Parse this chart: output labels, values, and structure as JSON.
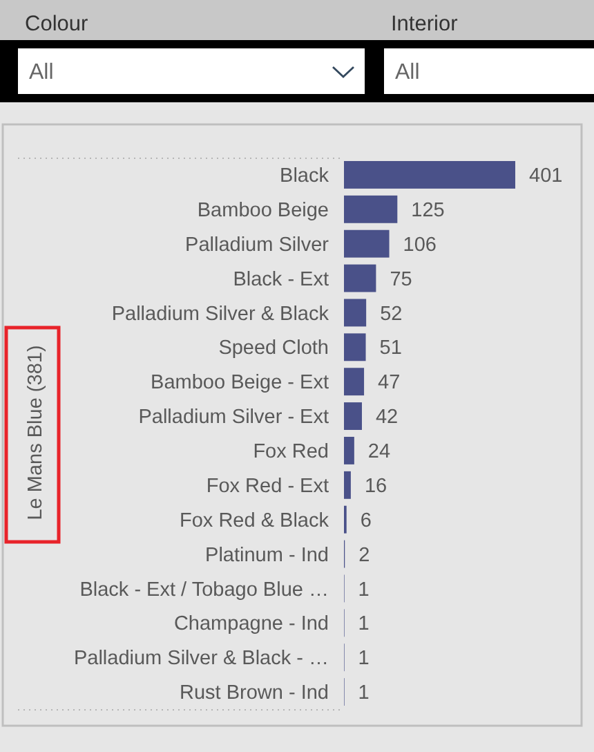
{
  "chart_data": [
    {
      "type": "other",
      "title": "Colour",
      "annotations": [
        "All"
      ]
    },
    {
      "type": "other",
      "title": "Interior",
      "annotations": [
        "All"
      ]
    },
    {
      "type": "bar",
      "orientation": "horizontal",
      "ylabel": "Le Mans Blue (381)",
      "categories": [
        "Black",
        "Bamboo Beige",
        "Palladium Silver",
        "Black - Ext",
        "Palladium Silver & Black",
        "Speed Cloth",
        "Bamboo Beige - Ext",
        "Palladium Silver - Ext",
        "Fox Red",
        "Fox Red - Ext",
        "Fox Red & Black",
        "Platinum - Ind",
        "Black - Ext / Tobago Blue …",
        "Champagne - Ind",
        "Palladium Silver & Black - …",
        "Rust Brown - Ind"
      ],
      "values": [
        401,
        125,
        106,
        75,
        52,
        51,
        47,
        42,
        24,
        16,
        6,
        2,
        1,
        1,
        1,
        1
      ],
      "color": "#4a5189",
      "data_labels": true
    }
  ]
}
